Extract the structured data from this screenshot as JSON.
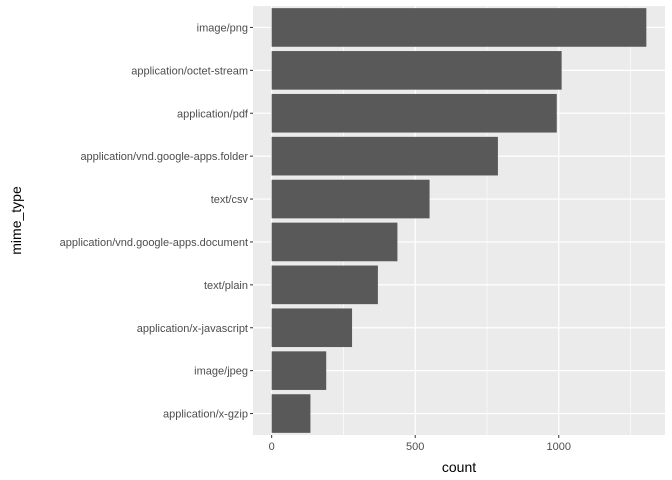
{
  "chart_data": {
    "type": "bar",
    "orientation": "horizontal",
    "categories": [
      "image/png",
      "application/octet-stream",
      "application/pdf",
      "application/vnd.google-apps.folder",
      "text/csv",
      "application/vnd.google-apps.document",
      "text/plain",
      "application/x-javascript",
      "image/jpeg",
      "application/x-gzip"
    ],
    "values": [
      1305,
      1010,
      993,
      788,
      550,
      438,
      370,
      280,
      190,
      135
    ],
    "xlabel": "count",
    "ylabel": "mime_type",
    "xlim": [
      -65,
      1370
    ],
    "xticks": [
      0,
      500,
      1000
    ],
    "xminor": [
      250,
      750,
      1250
    ],
    "grid": true,
    "colors": {
      "bar": "#595959",
      "panel": "#ebebeb",
      "grid": "#ffffff",
      "tick_label": "#4d4d4d",
      "axis_title": "#000000"
    }
  }
}
